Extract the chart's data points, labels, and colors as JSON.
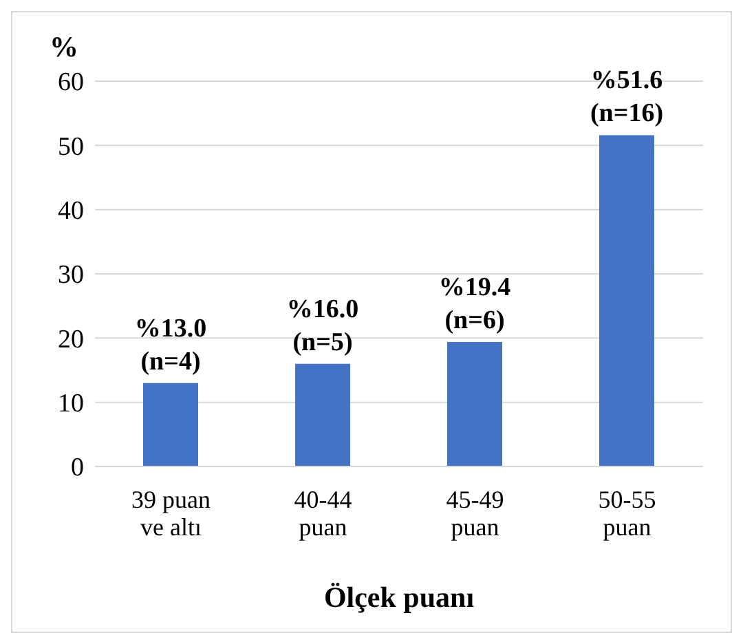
{
  "chart_data": {
    "type": "bar",
    "ylabel": "%",
    "xlabel": "Ölçek puanı",
    "categories": [
      "39 puan ve altı",
      "40-44 puan",
      "45-49 puan",
      "50-55 puan"
    ],
    "values": [
      13.0,
      16.0,
      19.4,
      51.6
    ],
    "value_labels": [
      "%13.0 (n=4)",
      "%16.0 (n=5)",
      "%19.4 (n=6)",
      "%51.6 (n=16)"
    ],
    "color": "#4472c4",
    "ylim": [
      0,
      60
    ],
    "yticks": [
      0,
      10,
      20,
      30,
      40,
      50,
      60
    ],
    "grid": "y"
  }
}
